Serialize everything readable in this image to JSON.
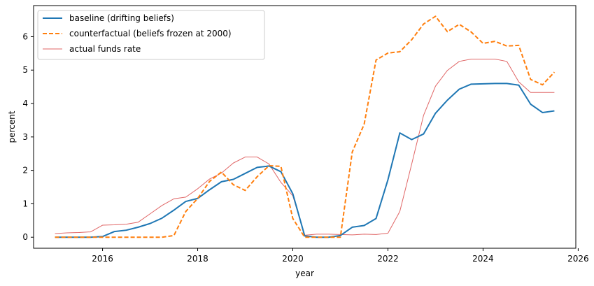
{
  "chart_data": {
    "type": "line",
    "title": "",
    "xlabel": "year",
    "ylabel": "percent",
    "xlim": [
      2014.55,
      2025.95
    ],
    "ylim": [
      -0.33,
      6.93
    ],
    "xticks": [
      2016,
      2018,
      2020,
      2022,
      2024,
      2026
    ],
    "yticks": [
      0,
      1,
      2,
      3,
      4,
      5,
      6
    ],
    "grid": false,
    "legend_position": "top-left",
    "x": [
      2015.0,
      2015.25,
      2015.5,
      2015.75,
      2016.0,
      2016.25,
      2016.5,
      2016.75,
      2017.0,
      2017.25,
      2017.5,
      2017.75,
      2018.0,
      2018.25,
      2018.5,
      2018.75,
      2019.0,
      2019.25,
      2019.5,
      2019.75,
      2020.0,
      2020.25,
      2020.5,
      2020.75,
      2021.0,
      2021.25,
      2021.5,
      2021.75,
      2022.0,
      2022.25,
      2022.5,
      2022.75,
      2023.0,
      2023.25,
      2023.5,
      2023.75,
      2024.0,
      2024.25,
      2024.5,
      2024.75,
      2025.0,
      2025.25,
      2025.5
    ],
    "series": [
      {
        "name": "baseline (drifting beliefs)",
        "color": "#1f77b4",
        "style": "solid",
        "values": [
          0.0,
          0.0,
          0.0,
          0.0,
          0.02,
          0.17,
          0.21,
          0.3,
          0.41,
          0.57,
          0.81,
          1.07,
          1.16,
          1.42,
          1.66,
          1.73,
          1.91,
          2.09,
          2.13,
          1.96,
          1.3,
          0.04,
          0.0,
          0.0,
          0.05,
          0.3,
          0.35,
          0.56,
          1.72,
          3.12,
          2.92,
          3.09,
          3.71,
          4.1,
          4.43,
          4.58,
          4.59,
          4.6,
          4.6,
          4.55,
          3.98,
          3.73,
          3.78
        ]
      },
      {
        "name": "counterfactual (beliefs frozen at 2000)",
        "color": "#ff7f0e",
        "style": "dashed",
        "values": [
          0.0,
          0.0,
          0.0,
          0.0,
          0.0,
          0.0,
          0.0,
          0.0,
          0.0,
          0.0,
          0.05,
          0.77,
          1.16,
          1.67,
          1.95,
          1.57,
          1.4,
          1.81,
          2.14,
          2.12,
          0.56,
          0.0,
          0.0,
          0.0,
          0.0,
          2.55,
          3.38,
          5.3,
          5.51,
          5.55,
          5.91,
          6.38,
          6.61,
          6.15,
          6.37,
          6.14,
          5.8,
          5.86,
          5.72,
          5.74,
          4.72,
          4.56,
          4.94
        ]
      },
      {
        "name": "actual funds rate",
        "color": "#e06666",
        "style": "thin",
        "values": [
          0.11,
          0.13,
          0.14,
          0.16,
          0.36,
          0.37,
          0.39,
          0.45,
          0.7,
          0.95,
          1.15,
          1.2,
          1.45,
          1.74,
          1.92,
          2.22,
          2.4,
          2.4,
          2.19,
          1.64,
          1.24,
          0.06,
          0.09,
          0.09,
          0.08,
          0.07,
          0.09,
          0.08,
          0.12,
          0.77,
          2.19,
          3.65,
          4.52,
          4.99,
          5.26,
          5.33,
          5.33,
          5.33,
          5.26,
          4.65,
          4.33,
          4.33,
          4.33
        ]
      }
    ]
  }
}
